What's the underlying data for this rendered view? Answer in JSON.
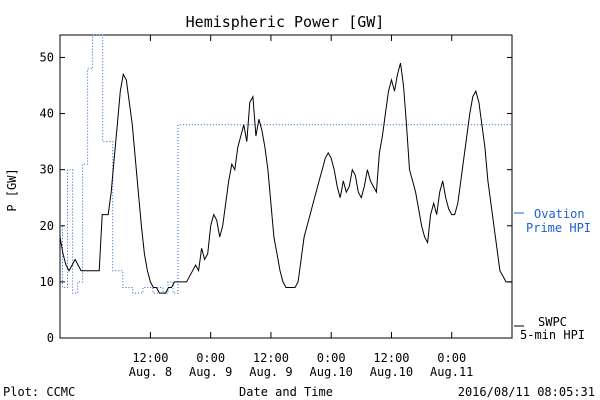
{
  "chart_data": {
    "type": "line",
    "title": "Hemispheric Power [GW]",
    "xlabel": "Date and Time",
    "ylabel": "P [GW]",
    "ylim": [
      0,
      54
    ],
    "y_ticks": [
      0,
      10,
      20,
      30,
      40,
      50
    ],
    "x_unit": "hours since 2016-08-07 18:00",
    "xlim": [
      0,
      90
    ],
    "x_ticks": [
      {
        "x": 18,
        "line1": "12:00",
        "line2": "Aug. 8"
      },
      {
        "x": 30,
        "line1": "0:00",
        "line2": "Aug. 9"
      },
      {
        "x": 42,
        "line1": "12:00",
        "line2": "Aug. 9"
      },
      {
        "x": 54,
        "line1": "0:00",
        "line2": "Aug.10"
      },
      {
        "x": 66,
        "line1": "12:00",
        "line2": "Aug.10"
      },
      {
        "x": 78,
        "line1": "0:00",
        "line2": "Aug.11"
      }
    ],
    "series": [
      {
        "name": "Ovation Prime HPI",
        "legend_line1": "Ovation",
        "legend_line2": "Prime HPI",
        "color": "#1f5fd6",
        "style": "dotted-step",
        "x": [
          0,
          0.5,
          1.5,
          2.5,
          3.5,
          4.5,
          5.5,
          6.5,
          8.5,
          10.5,
          12.5,
          14.5,
          16.5,
          18.5,
          19.5,
          20.5,
          21.5,
          22.5,
          23.5,
          24.5,
          26.5,
          28.5,
          30.5,
          32.5,
          34.5,
          36.5,
          38.5,
          39.5,
          40.5,
          41.5,
          42.5,
          43.5,
          44.5,
          45.5,
          46.5,
          47.5,
          48.5,
          49.5,
          50.5,
          51.5,
          52.5,
          53.5,
          54.5,
          55.5,
          56.5,
          57.5,
          58.5,
          59.5,
          60.5,
          61.5,
          62.5,
          63.5,
          64.5,
          65.5,
          66.5,
          67.5,
          68.5,
          69.5,
          70.5,
          71.5,
          72.5,
          73.5,
          74.5,
          75.5,
          76.5,
          77.5,
          78.5,
          79.5,
          80.5,
          81.5,
          82.5,
          83.5,
          84.5,
          85.5,
          86.5,
          87.5,
          88.5,
          89.5
        ],
        "y": [
          20,
          9,
          30,
          8,
          10,
          31,
          48,
          55,
          35,
          12,
          9,
          8,
          9,
          8,
          9,
          8,
          10,
          8,
          38,
          38,
          38,
          38,
          38,
          38,
          38,
          38,
          38,
          38,
          38,
          38,
          38,
          38,
          38,
          38,
          38,
          38,
          38,
          38,
          38,
          38,
          38,
          38,
          38,
          38,
          38,
          38,
          38,
          38,
          38,
          38,
          38,
          38,
          38,
          38,
          38,
          38,
          38,
          38,
          38,
          38,
          38,
          38,
          38,
          38,
          38,
          38,
          38,
          38,
          38,
          38,
          38,
          38,
          38,
          38,
          38,
          38,
          38,
          38
        ]
      },
      {
        "name": "SWPC 5-min HPI",
        "legend_line1": "SWPC",
        "legend_line2": "5-min HPI",
        "color": "#000000",
        "style": "solid",
        "x": [
          0,
          0.6,
          1.2,
          1.8,
          2.4,
          3.0,
          3.6,
          4.2,
          4.8,
          5.4,
          6.0,
          6.6,
          7.2,
          7.8,
          8.4,
          9.0,
          9.6,
          10.2,
          10.8,
          11.4,
          12.0,
          12.6,
          13.2,
          13.8,
          14.4,
          15.0,
          15.6,
          16.2,
          16.8,
          17.4,
          18.0,
          18.6,
          19.2,
          19.8,
          20.4,
          21.0,
          21.6,
          22.2,
          22.8,
          23.4,
          24.0,
          24.6,
          25.2,
          25.8,
          26.4,
          27.0,
          27.6,
          28.2,
          28.8,
          29.4,
          30.0,
          30.6,
          31.2,
          31.8,
          32.4,
          33.0,
          33.6,
          34.2,
          34.8,
          35.4,
          36.0,
          36.6,
          37.2,
          37.8,
          38.4,
          39.0,
          39.6,
          40.2,
          40.8,
          41.4,
          42.0,
          42.6,
          43.2,
          43.8,
          44.4,
          45.0,
          45.6,
          46.2,
          46.8,
          47.4,
          48.0,
          48.6,
          49.2,
          49.8,
          50.4,
          51.0,
          51.6,
          52.2,
          52.8,
          53.4,
          54.0,
          54.6,
          55.2,
          55.8,
          56.4,
          57.0,
          57.6,
          58.2,
          58.8,
          59.4,
          60.0,
          60.6,
          61.2,
          61.8,
          62.4,
          63.0,
          63.6,
          64.2,
          64.8,
          65.4,
          66.0,
          66.6,
          67.2,
          67.8,
          68.4,
          69.0,
          69.6,
          70.2,
          70.8,
          71.4,
          72.0,
          72.6,
          73.2,
          73.8,
          74.4,
          75.0,
          75.6,
          76.2,
          76.8,
          77.4,
          78.0,
          78.6,
          79.2,
          79.8,
          80.4,
          81.0,
          81.6,
          82.2,
          82.8,
          83.4,
          84.0,
          84.6,
          85.2,
          85.8,
          86.4,
          87.0,
          87.6,
          88.2,
          88.8,
          89.4,
          90.0
        ],
        "y": [
          18,
          15,
          13,
          12,
          13,
          14,
          13,
          12,
          12,
          12,
          12,
          12,
          12,
          12,
          22,
          22,
          22,
          26,
          32,
          38,
          44,
          47,
          46,
          42,
          38,
          32,
          26,
          20,
          15,
          12,
          10,
          9,
          9,
          8,
          8,
          8,
          9,
          9,
          10,
          10,
          10,
          10,
          10,
          11,
          12,
          13,
          12,
          16,
          14,
          15,
          20,
          22,
          21,
          18,
          20,
          24,
          28,
          31,
          30,
          34,
          36,
          38,
          35,
          42,
          43,
          36,
          39,
          37,
          34,
          30,
          24,
          18,
          15,
          12,
          10,
          9,
          9,
          9,
          9,
          10,
          14,
          18,
          20,
          22,
          24,
          26,
          28,
          30,
          32,
          33,
          32,
          30,
          27,
          25,
          28,
          26,
          27,
          30,
          29,
          26,
          25,
          27,
          30,
          28,
          27,
          26,
          33,
          36,
          40,
          44,
          46,
          44,
          47,
          49,
          45,
          38,
          30,
          28,
          26,
          23,
          20,
          18,
          17,
          22,
          24,
          22,
          26,
          28,
          25,
          23,
          22,
          22,
          24,
          28,
          32,
          36,
          40,
          43,
          44,
          42,
          38,
          34,
          28,
          24,
          20,
          16,
          12,
          11,
          10,
          10,
          10
        ]
      }
    ]
  },
  "footer": {
    "plot_credit": "Plot: CCMC",
    "timestamp": "2016/08/11 08:05:31"
  }
}
